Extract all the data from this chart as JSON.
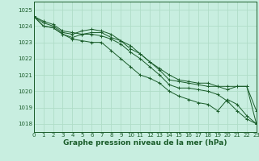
{
  "title": "Graphe pression niveau de la mer (hPa)",
  "background_color": "#c8eee0",
  "grid_color": "#b0ddc8",
  "line_color": "#1a5c2a",
  "xlim": [
    0,
    23
  ],
  "ylim": [
    1017.5,
    1025.5
  ],
  "yticks": [
    1018,
    1019,
    1020,
    1021,
    1022,
    1023,
    1024,
    1025
  ],
  "xticks": [
    0,
    1,
    2,
    3,
    4,
    5,
    6,
    7,
    8,
    9,
    10,
    11,
    12,
    13,
    14,
    15,
    16,
    17,
    18,
    19,
    20,
    21,
    22,
    23
  ],
  "series": [
    [
      1024.6,
      1024.0,
      1023.9,
      1023.5,
      1023.2,
      1023.1,
      1023.0,
      1023.0,
      1022.5,
      1022.0,
      1021.5,
      1021.0,
      1020.8,
      1020.5,
      1020.0,
      1019.7,
      1019.5,
      1019.3,
      1019.2,
      1018.8,
      1019.5,
      1019.2,
      1018.5,
      1018.0
    ],
    [
      1024.6,
      1024.0,
      1023.9,
      1023.5,
      1023.3,
      1023.5,
      1023.6,
      1023.6,
      1023.3,
      1023.1,
      1022.8,
      1022.3,
      1021.8,
      1021.4,
      1021.0,
      1020.7,
      1020.6,
      1020.5,
      1020.5,
      1020.3,
      1020.1,
      1020.3,
      1020.3,
      1018.8
    ],
    [
      1024.6,
      1024.2,
      1024.0,
      1023.6,
      1023.5,
      1023.7,
      1023.8,
      1023.7,
      1023.5,
      1023.1,
      1022.6,
      1022.3,
      1021.8,
      1021.3,
      1020.7,
      1020.6,
      1020.5,
      1020.4,
      1020.3,
      1020.3,
      1020.3,
      1020.3,
      1020.3,
      1018.0
    ],
    [
      1024.6,
      1024.3,
      1024.1,
      1023.7,
      1023.6,
      1023.5,
      1023.5,
      1023.4,
      1023.2,
      1022.9,
      1022.4,
      1022.0,
      1021.5,
      1021.0,
      1020.4,
      1020.2,
      1020.2,
      1020.1,
      1020.0,
      1019.8,
      1019.4,
      1018.8,
      1018.3,
      1018.0
    ]
  ],
  "tick_fontsize": 5,
  "label_fontsize": 6.5,
  "figsize": [
    3.2,
    2.0
  ],
  "dpi": 100
}
